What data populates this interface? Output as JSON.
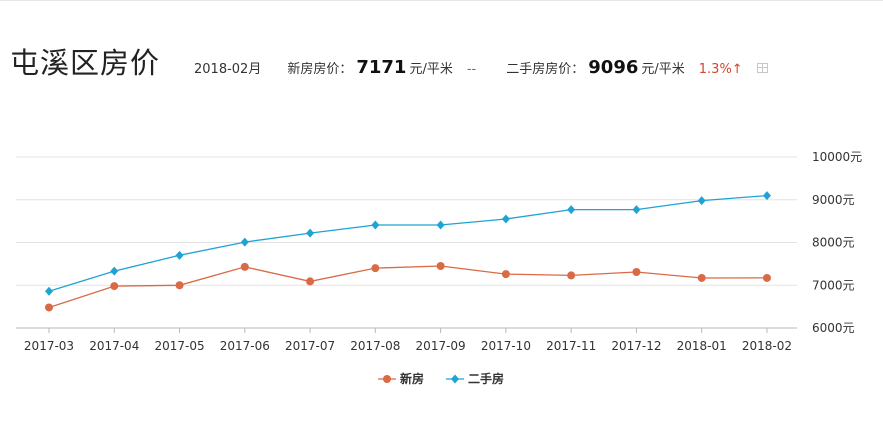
{
  "header": {
    "title": "屯溪区房价",
    "month": "2018-02月",
    "new_label": "新房房价：",
    "new_price": "7171",
    "new_unit": "元/平米",
    "new_change": "--",
    "used_label": "二手房房价：",
    "used_price": "9096",
    "used_unit": "元/平米",
    "used_change": "1.3%↑",
    "table_icon": "table-icon"
  },
  "chart_data": {
    "type": "line",
    "categories": [
      "2017-03",
      "2017-04",
      "2017-05",
      "2017-06",
      "2017-07",
      "2017-08",
      "2017-09",
      "2017-10",
      "2017-11",
      "2017-12",
      "2018-01",
      "2018-02"
    ],
    "series": [
      {
        "name": "新房",
        "color": "#d96a45",
        "marker": "circle",
        "values": [
          6480,
          6980,
          7000,
          7430,
          7090,
          7400,
          7450,
          7260,
          7230,
          7310,
          7170,
          7171
        ]
      },
      {
        "name": "二手房",
        "color": "#1fa3d3",
        "marker": "diamond",
        "values": [
          6860,
          7330,
          7700,
          8010,
          8220,
          8410,
          8410,
          8550,
          8770,
          8770,
          8980,
          9096
        ]
      }
    ],
    "ylim": [
      6000,
      10000
    ],
    "yticks": [
      6000,
      7000,
      8000,
      9000,
      10000
    ],
    "ytick_labels": [
      "6000元",
      "7000元",
      "8000元",
      "9000元",
      "10000元"
    ],
    "grid": true,
    "legend": "bottom-center"
  }
}
